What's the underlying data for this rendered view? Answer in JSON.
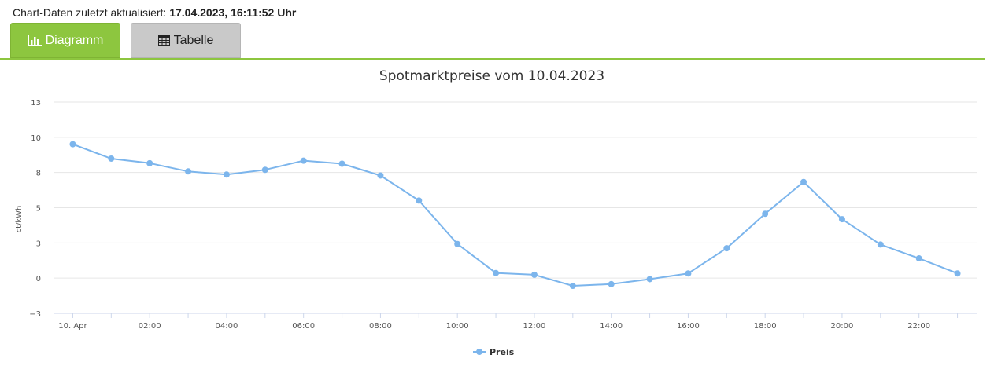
{
  "header": {
    "update_prefix": "Chart-Daten zuletzt aktualisiert:",
    "update_value": "17.04.2023, 16:11:52 Uhr"
  },
  "tabs": [
    {
      "label": "Diagramm",
      "icon": "bar-chart-icon",
      "active": true
    },
    {
      "label": "Tabelle",
      "icon": "table-icon",
      "active": false
    }
  ],
  "colors": {
    "accent": "#8dc63f",
    "series": "#7cb5ec",
    "tab_inactive": "#c9c9c9"
  },
  "chart_data": {
    "type": "line",
    "title": "Spotmarktpreise vom 10.04.2023",
    "ylabel": "ct/kWh",
    "xlabel": "",
    "ylim": [
      -3,
      13
    ],
    "y_ticks": [
      "13",
      "10",
      "8",
      "5",
      "3",
      "0",
      "−3"
    ],
    "x_ticks": [
      "10. Apr",
      "02:00",
      "04:00",
      "06:00",
      "08:00",
      "10:00",
      "12:00",
      "14:00",
      "16:00",
      "18:00",
      "20:00",
      "22:00"
    ],
    "x": [
      "00:00",
      "01:00",
      "02:00",
      "03:00",
      "04:00",
      "05:00",
      "06:00",
      "07:00",
      "08:00",
      "09:00",
      "10:00",
      "11:00",
      "12:00",
      "13:00",
      "14:00",
      "15:00",
      "16:00",
      "17:00",
      "18:00",
      "19:00",
      "20:00",
      "21:00",
      "22:00",
      "23:00"
    ],
    "series": [
      {
        "name": "Preis",
        "values": [
          9.81,
          8.72,
          8.37,
          7.75,
          7.51,
          7.87,
          8.56,
          8.33,
          7.44,
          5.54,
          2.25,
          0.05,
          -0.08,
          -0.92,
          -0.79,
          -0.41,
          0.02,
          1.93,
          4.54,
          6.95,
          4.13,
          2.21,
          1.16,
          0.02
        ]
      }
    ],
    "legend": "bottom-center",
    "grid": true
  }
}
